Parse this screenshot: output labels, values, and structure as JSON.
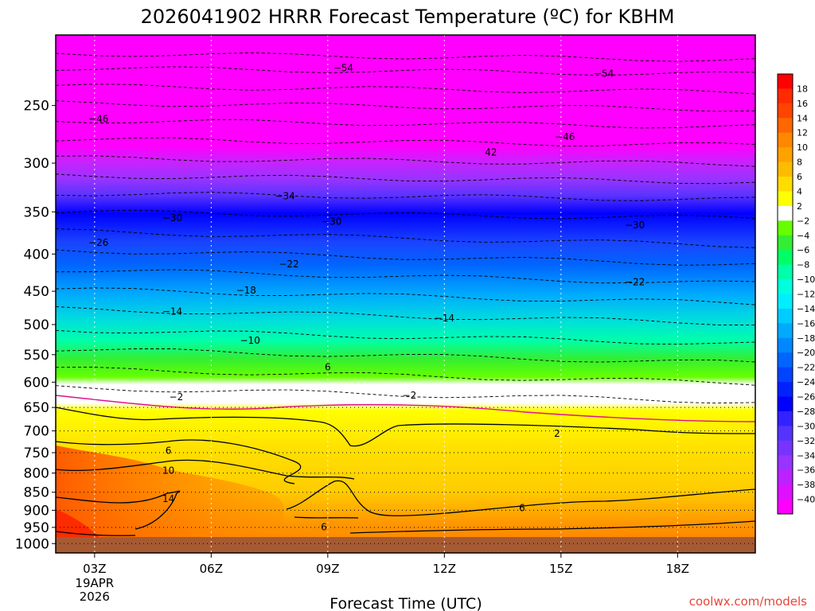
{
  "chart_data": {
    "type": "heatmap",
    "title": "2026041902 HRRR Forecast Temperature (ºC) for KBHM",
    "xlabel": "Forecast Time (UTC)",
    "ylabel": "",
    "y_scale": "log-pressure",
    "y_range_hpa": [
      200,
      1030
    ],
    "y_ticks": [
      "250",
      "300",
      "350",
      "400",
      "450",
      "500",
      "550",
      "600",
      "650",
      "700",
      "750",
      "800",
      "850",
      "900",
      "950",
      "1000"
    ],
    "x_range_hours": [
      2,
      20
    ],
    "x_ticks": [
      {
        "hour": 3,
        "label": "03Z",
        "date_line1": "19APR",
        "date_line2": "2026"
      },
      {
        "hour": 6,
        "label": "06Z"
      },
      {
        "hour": 9,
        "label": "09Z"
      },
      {
        "hour": 12,
        "label": "12Z"
      },
      {
        "hour": 15,
        "label": "15Z"
      },
      {
        "hour": 18,
        "label": "18Z"
      }
    ],
    "colorbar_labels": [
      "18",
      "16",
      "14",
      "12",
      "10",
      "8",
      "6",
      "4",
      "2",
      "−2",
      "−4",
      "−6",
      "−8",
      "−10",
      "−12",
      "−14",
      "−16",
      "−18",
      "−20",
      "−22",
      "−24",
      "−26",
      "−28",
      "−30",
      "−32",
      "−34",
      "−36",
      "−38",
      "−40"
    ],
    "contour_labels": [
      {
        "text": "−54",
        "hour": 9.4,
        "hpa": 222
      },
      {
        "text": "−54",
        "hour": 16.1,
        "hpa": 226
      },
      {
        "text": "−46",
        "hour": 3.1,
        "hpa": 261
      },
      {
        "text": "−46",
        "hour": 15.1,
        "hpa": 276
      },
      {
        "text": "42",
        "hour": 13.2,
        "hpa": 290
      },
      {
        "text": "−34",
        "hour": 7.9,
        "hpa": 333
      },
      {
        "text": "−30",
        "hour": 5.0,
        "hpa": 357
      },
      {
        "text": "−30",
        "hour": 9.1,
        "hpa": 361
      },
      {
        "text": "−30",
        "hour": 16.9,
        "hpa": 365
      },
      {
        "text": "−26",
        "hour": 3.1,
        "hpa": 386
      },
      {
        "text": "−22",
        "hour": 8.0,
        "hpa": 413
      },
      {
        "text": "−22",
        "hour": 16.9,
        "hpa": 437
      },
      {
        "text": "−18",
        "hour": 6.9,
        "hpa": 449
      },
      {
        "text": "−14",
        "hour": 5.0,
        "hpa": 480
      },
      {
        "text": "−14",
        "hour": 12.0,
        "hpa": 490
      },
      {
        "text": "−10",
        "hour": 7.0,
        "hpa": 526
      },
      {
        "text": "6",
        "hour": 9.0,
        "hpa": 572
      },
      {
        "text": "−2",
        "hour": 5.1,
        "hpa": 629
      },
      {
        "text": "−2",
        "hour": 11.1,
        "hpa": 626
      },
      {
        "text": "2",
        "hour": 14.9,
        "hpa": 706
      },
      {
        "text": "6",
        "hour": 4.9,
        "hpa": 745
      },
      {
        "text": "10",
        "hour": 4.9,
        "hpa": 794
      },
      {
        "text": "14",
        "hour": 4.9,
        "hpa": 868
      },
      {
        "text": "6",
        "hour": 14.0,
        "hpa": 893
      },
      {
        "text": "6",
        "hour": 8.9,
        "hpa": 949
      }
    ]
  },
  "credit": "coolwx.com/models"
}
